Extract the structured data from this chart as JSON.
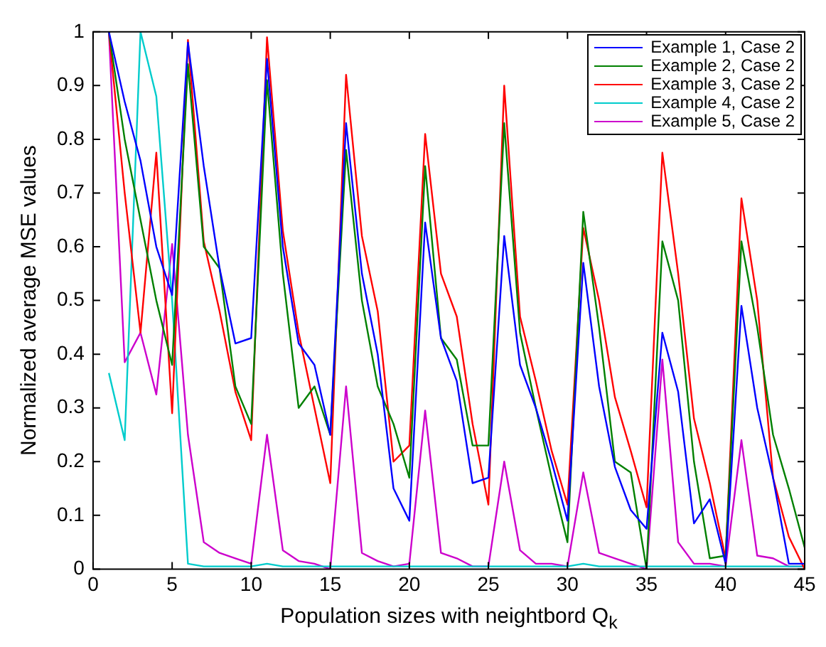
{
  "chart_data": {
    "type": "line",
    "xlabel": "Population sizes with neightbord Q$_{k}$",
    "ylabel": "Normalized average MSE values",
    "x": [
      1,
      2,
      3,
      4,
      5,
      6,
      7,
      8,
      9,
      10,
      11,
      12,
      13,
      14,
      15,
      16,
      17,
      18,
      19,
      20,
      21,
      22,
      23,
      24,
      25,
      26,
      27,
      28,
      29,
      30,
      31,
      32,
      33,
      34,
      35,
      36,
      37,
      38,
      39,
      40,
      41,
      42,
      43,
      44,
      45
    ],
    "xlim": [
      0,
      45
    ],
    "xticks": [
      0,
      5,
      10,
      15,
      20,
      25,
      30,
      35,
      40,
      45
    ],
    "ylim": [
      0,
      1
    ],
    "yticks": [
      0,
      0.1,
      0.2,
      0.3,
      0.4,
      0.5,
      0.6,
      0.7,
      0.8,
      0.9,
      1
    ],
    "grid": false,
    "legend": "top right",
    "marker": "none",
    "line_style": "solid",
    "series": [
      {
        "name": "Example 1, Case 2",
        "color": "#0000ff",
        "values": [
          1.0,
          0.87,
          0.76,
          0.6,
          0.51,
          0.98,
          0.75,
          0.56,
          0.42,
          0.43,
          0.95,
          0.6,
          0.42,
          0.38,
          0.25,
          0.83,
          0.55,
          0.4,
          0.15,
          0.09,
          0.645,
          0.43,
          0.35,
          0.16,
          0.17,
          0.62,
          0.38,
          0.3,
          0.2,
          0.09,
          0.57,
          0.34,
          0.19,
          0.11,
          0.075,
          0.44,
          0.33,
          0.085,
          0.13,
          0.01,
          0.49,
          0.3,
          0.17,
          0.01,
          0.01
        ]
      },
      {
        "name": "Example 2, Case 2",
        "color": "#008000",
        "values": [
          1.0,
          0.8,
          0.65,
          0.5,
          0.38,
          0.94,
          0.6,
          0.56,
          0.34,
          0.27,
          0.91,
          0.55,
          0.3,
          0.34,
          0.25,
          0.78,
          0.5,
          0.34,
          0.27,
          0.17,
          0.75,
          0.43,
          0.39,
          0.23,
          0.23,
          0.83,
          0.44,
          0.3,
          0.17,
          0.05,
          0.665,
          0.45,
          0.2,
          0.18,
          0.0,
          0.61,
          0.5,
          0.2,
          0.02,
          0.025,
          0.61,
          0.45,
          0.25,
          0.15,
          0.04
        ]
      },
      {
        "name": "Example 3, Case 2",
        "color": "#ff0000",
        "values": [
          1.0,
          0.7,
          0.44,
          0.775,
          0.29,
          0.985,
          0.61,
          0.48,
          0.33,
          0.24,
          0.99,
          0.63,
          0.44,
          0.3,
          0.16,
          0.92,
          0.62,
          0.48,
          0.2,
          0.23,
          0.81,
          0.55,
          0.47,
          0.27,
          0.12,
          0.9,
          0.47,
          0.35,
          0.22,
          0.12,
          0.635,
          0.5,
          0.32,
          0.22,
          0.115,
          0.775,
          0.55,
          0.28,
          0.16,
          0.02,
          0.69,
          0.5,
          0.17,
          0.06,
          0.0
        ]
      },
      {
        "name": "Example 4, Case 2",
        "color": "#00cccc",
        "values": [
          0.365,
          0.24,
          1.0,
          0.88,
          0.5,
          0.01,
          0.005,
          0.005,
          0.005,
          0.005,
          0.01,
          0.005,
          0.005,
          0.005,
          0.005,
          0.005,
          0.005,
          0.005,
          0.005,
          0.005,
          0.005,
          0.005,
          0.005,
          0.005,
          0.005,
          0.005,
          0.005,
          0.005,
          0.005,
          0.005,
          0.01,
          0.005,
          0.005,
          0.005,
          0.005,
          0.005,
          0.005,
          0.005,
          0.005,
          0.005,
          0.005,
          0.005,
          0.005,
          0.005,
          0.005
        ]
      },
      {
        "name": "Example 5, Case 2",
        "color": "#cc00cc",
        "values": [
          1.0,
          0.385,
          0.44,
          0.325,
          0.605,
          0.25,
          0.05,
          0.03,
          0.02,
          0.01,
          0.25,
          0.035,
          0.015,
          0.01,
          0.0,
          0.34,
          0.03,
          0.015,
          0.005,
          0.01,
          0.295,
          0.03,
          0.02,
          0.005,
          0.005,
          0.2,
          0.035,
          0.01,
          0.01,
          0.005,
          0.18,
          0.03,
          0.02,
          0.01,
          0.0,
          0.39,
          0.05,
          0.01,
          0.01,
          0.005,
          0.24,
          0.025,
          0.02,
          0.005,
          0.005
        ]
      }
    ]
  }
}
